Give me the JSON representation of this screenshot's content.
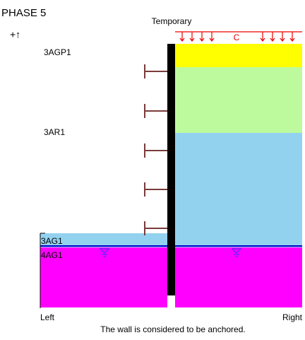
{
  "header": {
    "phase": "PHASE 5",
    "axis_symbol": "+↑"
  },
  "load": {
    "label": "Temporary",
    "code": "C"
  },
  "layers": {
    "left": [
      "3AG1",
      "4AG1"
    ],
    "right": [
      "3AGP1",
      "3AR1"
    ]
  },
  "footer": {
    "left": "Left",
    "right": "Right",
    "note": "The wall is considered to be anchored."
  }
}
